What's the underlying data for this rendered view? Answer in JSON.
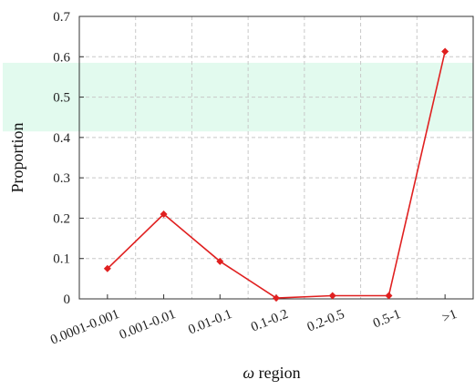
{
  "chart_data": {
    "type": "line",
    "xlabel_symbol": "ω",
    "xlabel_rest": " region",
    "ylabel": "Proportion",
    "categories": [
      "0.0001-0.001",
      "0.001-0.01",
      "0.01-0.1",
      "0.1-0.2",
      "0.2-0.5",
      "0.5-1",
      ">1"
    ],
    "series": [
      {
        "values": [
          0.075,
          0.21,
          0.093,
          0.002,
          0.008,
          0.008,
          0.613
        ]
      }
    ],
    "ylim": [
      0,
      0.7
    ],
    "yticks": [
      "0",
      "0.1",
      "0.2",
      "0.3",
      "0.4",
      "0.5",
      "0.6",
      "0.7"
    ],
    "grid": true,
    "highlight_band": [
      0.415,
      0.585
    ],
    "colors": {
      "line": "#e02020",
      "marker": "#e02020",
      "band": "#e2faee",
      "grid": "#c8c8c8",
      "axis": "#333333"
    }
  }
}
